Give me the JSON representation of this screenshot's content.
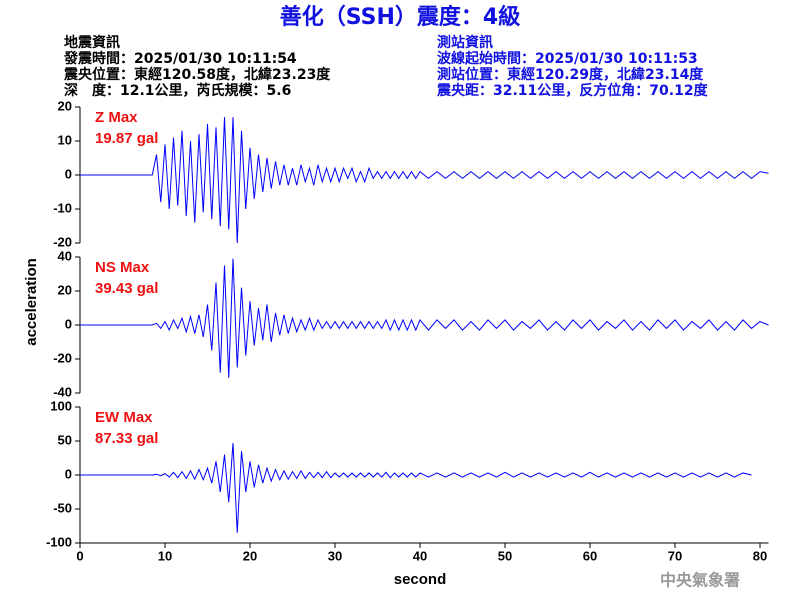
{
  "header": {
    "title": "善化（SSH）震度：4級",
    "quake": [
      "地震資訊",
      "發震時間：2025/01/30 10:11:54",
      "震央位置：東經120.58度，北緯23.23度",
      "深　度：12.1公里，芮氏規模：5.6"
    ],
    "station": [
      "測站資訊",
      "波線起始時間：2025/01/30 10:11:53",
      "測站位置：東經120.29度，北緯23.14度",
      "震央距：32.11公里，反方位角：70.12度"
    ],
    "watermark": "中央氣象署"
  },
  "chart_data": {
    "type": "line",
    "xlabel": "second",
    "ylabel": "acceleration",
    "xlim": [
      0,
      81
    ],
    "xticks": [
      0,
      10,
      20,
      30,
      40,
      50,
      60,
      70,
      80
    ],
    "x": [
      0,
      8,
      8.5,
      9,
      9.5,
      10,
      10.5,
      11,
      11.5,
      12,
      12.5,
      13,
      13.5,
      14,
      14.5,
      15,
      15.5,
      16,
      16.5,
      17,
      17.5,
      18,
      18.5,
      19,
      19.5,
      20,
      20.5,
      21,
      21.5,
      22,
      22.5,
      23,
      23.5,
      24,
      24.5,
      25,
      25.5,
      26,
      26.5,
      27,
      27.5,
      28,
      28.5,
      29,
      29.5,
      30,
      30.5,
      31,
      31.5,
      32,
      32.5,
      33,
      33.5,
      34,
      34.5,
      35,
      35.5,
      36,
      36.5,
      37,
      37.5,
      38,
      38.5,
      39,
      39.5,
      40,
      41,
      42,
      43,
      44,
      45,
      46,
      47,
      48,
      49,
      50,
      51,
      52,
      53,
      54,
      55,
      56,
      57,
      58,
      59,
      60,
      61,
      62,
      63,
      64,
      65,
      66,
      67,
      68,
      69,
      70,
      71,
      72,
      73,
      74,
      75,
      76,
      77,
      78,
      79,
      80,
      81
    ],
    "panels": [
      {
        "name": "Z Max",
        "max_label": "19.87 gal",
        "color": "#0000ff",
        "ylim": [
          -20,
          20
        ],
        "yticks": [
          -20,
          -10,
          0,
          10,
          20
        ],
        "values": [
          0,
          0,
          0,
          6,
          -8,
          9,
          -10,
          11,
          -9,
          13,
          -12,
          10,
          -14,
          12,
          -11,
          15,
          -13,
          14,
          -15,
          17,
          -16,
          17,
          -20,
          13,
          -10,
          8,
          -7,
          6,
          -5,
          5,
          -4,
          4,
          -3,
          3,
          -3,
          2,
          -3,
          3,
          -2,
          2,
          -3,
          3,
          -2,
          2,
          -2,
          2,
          -2,
          2,
          -1,
          2,
          -2,
          1,
          -2,
          2,
          -1,
          1,
          -1,
          1,
          -1,
          1,
          -1,
          1,
          -1,
          1,
          -1,
          1,
          -1,
          1,
          -1,
          1,
          -1,
          1,
          -1,
          1,
          -1,
          1,
          -1,
          1,
          -1,
          1,
          -1,
          1,
          -1,
          1,
          -1,
          1,
          -1,
          1,
          -1,
          1,
          -1,
          1,
          -1,
          1,
          -1,
          1,
          -1,
          1,
          -1,
          1,
          -1,
          1,
          -1,
          1,
          -1,
          1,
          0.5
        ]
      },
      {
        "name": "NS Max",
        "max_label": "39.43 gal",
        "color": "#0000ff",
        "ylim": [
          -40,
          40
        ],
        "yticks": [
          -40,
          -20,
          0,
          20,
          40
        ],
        "values": [
          0,
          0,
          0,
          1,
          -2,
          2,
          -3,
          3,
          -2,
          4,
          -4,
          5,
          -5,
          6,
          -7,
          12,
          -15,
          25,
          -28,
          35,
          -31,
          39,
          -25,
          22,
          -18,
          14,
          -12,
          10,
          -9,
          12,
          -10,
          7,
          -6,
          6,
          -5,
          4,
          -4,
          3,
          -3,
          4,
          -3,
          3,
          -2,
          2,
          -2,
          2,
          -2,
          2,
          -2,
          2,
          -2,
          2,
          -2,
          2,
          -2,
          2,
          -2,
          3,
          -3,
          3,
          -3,
          3,
          -3,
          3,
          -3,
          3,
          -3,
          3,
          -2,
          3,
          -3,
          2,
          -3,
          3,
          -2,
          3,
          -3,
          2,
          -2,
          3,
          -3,
          2,
          -3,
          3,
          -2,
          3,
          -3,
          2,
          -2,
          3,
          -3,
          2,
          -3,
          3,
          -2,
          3,
          -3,
          2,
          -2,
          3,
          -3,
          2,
          -3,
          3,
          -2,
          2,
          0
        ]
      },
      {
        "name": "EW Max",
        "max_label": "87.33 gal",
        "color": "#0000ff",
        "ylim": [
          -100,
          100
        ],
        "yticks": [
          -100,
          -50,
          0,
          50,
          100
        ],
        "values": [
          0,
          0,
          0,
          1,
          -1,
          2,
          -3,
          4,
          -4,
          5,
          -5,
          6,
          -6,
          8,
          -7,
          10,
          -12,
          20,
          -25,
          30,
          -40,
          47,
          -85,
          35,
          -25,
          20,
          -18,
          15,
          -12,
          10,
          -9,
          8,
          -7,
          6,
          -6,
          5,
          -5,
          6,
          -5,
          4,
          -4,
          4,
          -4,
          5,
          -4,
          3,
          -3,
          3,
          -3,
          3,
          -3,
          3,
          -3,
          3,
          -3,
          3,
          -3,
          4,
          -4,
          3,
          -3,
          3,
          -3,
          3,
          -3,
          3,
          -3,
          3,
          -3,
          3,
          -3,
          3,
          -3,
          3,
          -3,
          4,
          -3,
          3,
          -3,
          3,
          -3,
          3,
          -3,
          3,
          -3,
          4,
          -3,
          3,
          -3,
          3,
          -3,
          3,
          -3,
          3,
          -3,
          3,
          -3,
          3,
          -3,
          3,
          -3,
          3,
          -3,
          3,
          0
        ]
      }
    ]
  }
}
